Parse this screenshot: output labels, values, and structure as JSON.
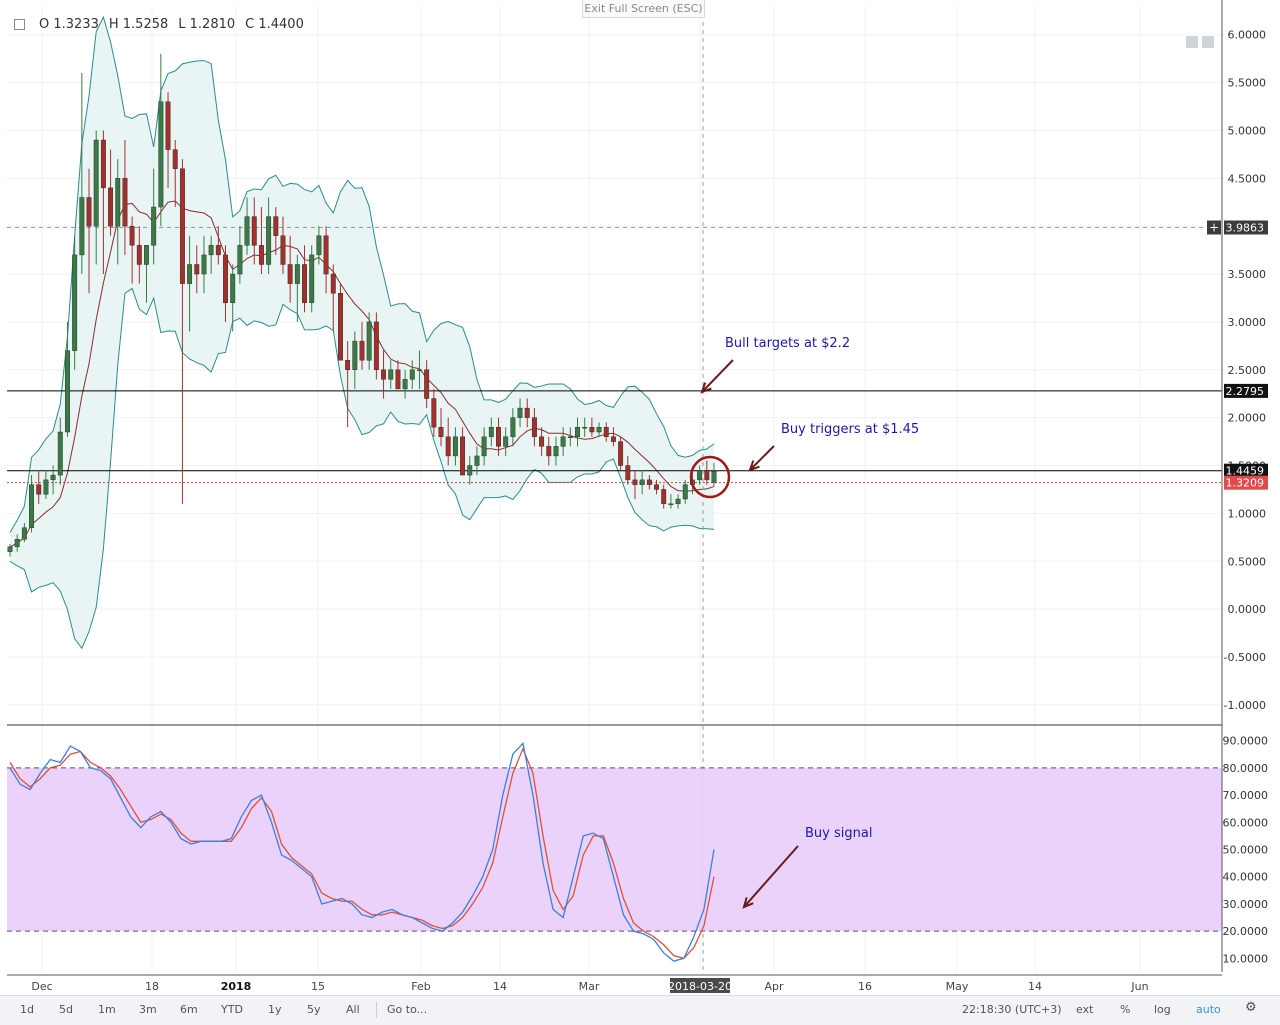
{
  "ohlc": {
    "open": "O 1.3233",
    "high": "H 1.5258",
    "low": "L 1.2810",
    "close": "C 1.4400"
  },
  "exit_fullscreen": "Exit Full Screen (ESC)",
  "colors": {
    "up": "#3a7a44",
    "down": "#a3302b",
    "bb": "#2a8c8c",
    "bb_fill": "#dff1f1",
    "ma": "#8b2a2a",
    "stoch_k": "#3a80e0",
    "stoch_d": "#e0503a",
    "stoch_band": "#e8cdf9"
  },
  "annotations": {
    "bull": "Bull targets at $2.2",
    "buy_trig": "Buy triggers at $1.45",
    "buy_sig": "Buy signal"
  },
  "chart_data": {
    "type": "candlestick",
    "price_axis_ticks": [
      "6.0000",
      "5.5000",
      "5.0000",
      "4.5000",
      "4.0000",
      "3.5000",
      "3.0000",
      "2.5000",
      "2.0000",
      "1.5000",
      "1.0000",
      "0.5000",
      "0.0000",
      "-0.5000",
      "-1.0000"
    ],
    "price_axis_values": [
      6,
      5.5,
      5,
      4.5,
      4,
      3.5,
      3,
      2.5,
      2,
      1.5,
      1,
      0.5,
      0,
      -0.5,
      -1
    ],
    "price_range": [
      -1.2,
      6.3
    ],
    "labels": [
      {
        "text": "3.9863",
        "value": 3.9863,
        "style": "cross"
      },
      {
        "text": "2.2795",
        "value": 2.2795,
        "style": "black"
      },
      {
        "text": "1.4459",
        "value": 1.4459,
        "style": "black"
      },
      {
        "text": "1.3209",
        "value": 1.3209,
        "style": "red"
      }
    ],
    "hlines": [
      2.2795,
      1.4459
    ],
    "dashed_hline": 3.9863,
    "dotted_red_hline": 1.3209,
    "time_axis": [
      "Dec",
      "18",
      "2018",
      "15",
      "Feb",
      "14",
      "Mar",
      "2018-03-20",
      "Apr",
      "16",
      "May",
      "14",
      "Jun"
    ],
    "candles": [
      [
        0.6,
        0.68,
        0.55,
        0.65
      ],
      [
        0.65,
        0.78,
        0.6,
        0.73
      ],
      [
        0.73,
        0.9,
        0.7,
        0.85
      ],
      [
        0.85,
        1.4,
        0.8,
        1.3
      ],
      [
        1.3,
        1.45,
        1.1,
        1.2
      ],
      [
        1.2,
        1.45,
        1.15,
        1.35
      ],
      [
        1.35,
        1.5,
        1.2,
        1.4
      ],
      [
        1.4,
        2.0,
        1.3,
        1.85
      ],
      [
        1.85,
        3.0,
        1.8,
        2.7
      ],
      [
        2.7,
        3.9,
        2.5,
        3.7
      ],
      [
        3.7,
        5.6,
        3.5,
        4.3
      ],
      [
        4.3,
        4.6,
        3.3,
        4.0
      ],
      [
        4.0,
        5.0,
        3.6,
        4.9
      ],
      [
        4.9,
        5.0,
        3.5,
        4.4
      ],
      [
        4.4,
        4.8,
        3.9,
        4.0
      ],
      [
        4.0,
        4.7,
        3.6,
        4.5
      ],
      [
        4.5,
        4.9,
        3.7,
        4.0
      ],
      [
        4.0,
        4.1,
        3.4,
        3.8
      ],
      [
        3.8,
        4.0,
        3.4,
        3.6
      ],
      [
        3.6,
        3.8,
        3.2,
        3.8
      ],
      [
        3.8,
        4.6,
        3.6,
        4.2
      ],
      [
        4.2,
        5.8,
        4.0,
        5.3
      ],
      [
        5.3,
        5.4,
        4.4,
        4.8
      ],
      [
        4.8,
        4.9,
        4.2,
        4.6
      ],
      [
        4.6,
        4.7,
        1.1,
        3.4
      ],
      [
        3.4,
        3.9,
        2.9,
        3.6
      ],
      [
        3.6,
        3.8,
        3.3,
        3.5
      ],
      [
        3.5,
        3.9,
        3.3,
        3.7
      ],
      [
        3.7,
        3.9,
        3.5,
        3.8
      ],
      [
        3.8,
        4.0,
        3.6,
        3.7
      ],
      [
        3.7,
        3.8,
        3.0,
        3.2
      ],
      [
        3.2,
        3.6,
        2.9,
        3.5
      ],
      [
        3.5,
        4.0,
        3.4,
        3.8
      ],
      [
        3.8,
        4.3,
        3.7,
        4.1
      ],
      [
        4.1,
        4.3,
        3.6,
        3.8
      ],
      [
        3.8,
        4.2,
        3.5,
        3.6
      ],
      [
        3.6,
        4.3,
        3.5,
        4.1
      ],
      [
        4.1,
        4.2,
        3.7,
        3.9
      ],
      [
        3.9,
        4.1,
        3.5,
        3.6
      ],
      [
        3.6,
        3.9,
        3.2,
        3.4
      ],
      [
        3.4,
        3.7,
        3.0,
        3.6
      ],
      [
        3.6,
        3.8,
        3.1,
        3.2
      ],
      [
        3.2,
        3.8,
        3.1,
        3.7
      ],
      [
        3.7,
        4.0,
        3.6,
        3.9
      ],
      [
        3.9,
        4.0,
        3.3,
        3.5
      ],
      [
        3.5,
        3.6,
        2.9,
        3.3
      ],
      [
        3.3,
        3.4,
        2.6,
        2.6
      ],
      [
        2.6,
        2.8,
        1.9,
        2.5
      ],
      [
        2.5,
        2.9,
        2.3,
        2.8
      ],
      [
        2.8,
        3.0,
        2.5,
        2.6
      ],
      [
        2.6,
        3.1,
        2.5,
        3.0
      ],
      [
        3.0,
        3.1,
        2.4,
        2.5
      ],
      [
        2.5,
        2.7,
        2.2,
        2.4
      ],
      [
        2.4,
        2.6,
        2.3,
        2.5
      ],
      [
        2.5,
        2.6,
        2.3,
        2.3
      ],
      [
        2.3,
        2.5,
        2.2,
        2.4
      ],
      [
        2.4,
        2.6,
        2.3,
        2.5
      ],
      [
        2.5,
        2.7,
        2.3,
        2.5
      ],
      [
        2.5,
        2.6,
        2.1,
        2.2
      ],
      [
        2.2,
        2.3,
        1.8,
        1.9
      ],
      [
        1.9,
        2.1,
        1.7,
        1.8
      ],
      [
        1.8,
        2.0,
        1.5,
        1.6
      ],
      [
        1.6,
        1.9,
        1.5,
        1.8
      ],
      [
        1.8,
        1.9,
        1.4,
        1.4
      ],
      [
        1.4,
        1.6,
        1.3,
        1.5
      ],
      [
        1.5,
        1.7,
        1.4,
        1.6
      ],
      [
        1.6,
        1.9,
        1.5,
        1.8
      ],
      [
        1.8,
        2.0,
        1.7,
        1.9
      ],
      [
        1.9,
        2.0,
        1.6,
        1.7
      ],
      [
        1.7,
        1.9,
        1.6,
        1.8
      ],
      [
        1.8,
        2.1,
        1.7,
        2.0
      ],
      [
        2.0,
        2.2,
        1.9,
        2.1
      ],
      [
        2.1,
        2.2,
        1.9,
        2.0
      ],
      [
        2.0,
        2.1,
        1.7,
        1.8
      ],
      [
        1.8,
        1.9,
        1.6,
        1.7
      ],
      [
        1.7,
        1.8,
        1.5,
        1.6
      ],
      [
        1.6,
        1.8,
        1.5,
        1.7
      ],
      [
        1.7,
        1.9,
        1.6,
        1.8
      ],
      [
        1.8,
        1.9,
        1.7,
        1.8
      ],
      [
        1.8,
        2.0,
        1.7,
        1.9
      ],
      [
        1.9,
        2.0,
        1.8,
        1.9
      ],
      [
        1.9,
        2.0,
        1.8,
        1.85
      ],
      [
        1.85,
        1.95,
        1.8,
        1.9
      ],
      [
        1.9,
        1.95,
        1.75,
        1.8
      ],
      [
        1.8,
        1.9,
        1.7,
        1.75
      ],
      [
        1.75,
        1.8,
        1.45,
        1.5
      ],
      [
        1.5,
        1.6,
        1.3,
        1.35
      ],
      [
        1.35,
        1.45,
        1.15,
        1.3
      ],
      [
        1.3,
        1.45,
        1.2,
        1.35
      ],
      [
        1.35,
        1.4,
        1.25,
        1.3
      ],
      [
        1.3,
        1.35,
        1.2,
        1.25
      ],
      [
        1.25,
        1.3,
        1.05,
        1.1
      ],
      [
        1.1,
        1.2,
        1.05,
        1.1
      ],
      [
        1.1,
        1.2,
        1.05,
        1.15
      ],
      [
        1.15,
        1.35,
        1.1,
        1.3
      ],
      [
        1.3,
        1.45,
        1.2,
        1.35
      ],
      [
        1.35,
        1.5,
        1.3,
        1.45
      ],
      [
        1.45,
        1.55,
        1.3,
        1.35
      ],
      [
        1.3233,
        1.5258,
        1.281,
        1.44
      ]
    ],
    "stoch_range": [
      5,
      95
    ],
    "stoch_ticks": [
      "90.0000",
      "80.0000",
      "70.0000",
      "60.0000",
      "50.0000",
      "40.0000",
      "30.0000",
      "20.0000",
      "10.0000"
    ],
    "stoch_tick_values": [
      90,
      80,
      70,
      60,
      50,
      40,
      30,
      20,
      10
    ],
    "stoch_band": [
      20,
      80
    ],
    "stoch_k": [
      80,
      74,
      72,
      78,
      83,
      82,
      88,
      86,
      80,
      79,
      76,
      69,
      62,
      58,
      62,
      64,
      60,
      54,
      52,
      53,
      53,
      53,
      54,
      62,
      68,
      70,
      60,
      48,
      46,
      43,
      40,
      30,
      31,
      32,
      30,
      26,
      25,
      27,
      28,
      26,
      25,
      23,
      21,
      20,
      23,
      27,
      33,
      40,
      50,
      70,
      85,
      89,
      70,
      45,
      28,
      25,
      40,
      55,
      56,
      54,
      40,
      26,
      20,
      19,
      17,
      12,
      9,
      10,
      18,
      28,
      50
    ],
    "stoch_d": [
      82,
      76,
      73,
      76,
      80,
      81,
      85,
      86,
      82,
      80,
      77,
      72,
      66,
      60,
      61,
      63,
      61,
      56,
      53,
      53,
      53,
      53,
      53,
      58,
      65,
      69,
      64,
      52,
      47,
      44,
      41,
      34,
      32,
      31,
      31,
      28,
      26,
      26,
      27,
      26,
      25,
      24,
      22,
      21,
      22,
      25,
      30,
      36,
      45,
      62,
      78,
      87,
      78,
      55,
      35,
      28,
      33,
      48,
      55,
      55,
      45,
      32,
      23,
      20,
      18,
      15,
      11,
      10,
      14,
      22,
      40
    ]
  },
  "toolbar": {
    "ranges": [
      "1d",
      "5d",
      "1m",
      "3m",
      "6m",
      "YTD",
      "1y",
      "5y",
      "All"
    ],
    "goto": "Go to...",
    "time": "22:18:30 (UTC+3)",
    "ext": "ext",
    "pct": "%",
    "log": "log",
    "auto": "auto",
    "gear": "⚙"
  }
}
